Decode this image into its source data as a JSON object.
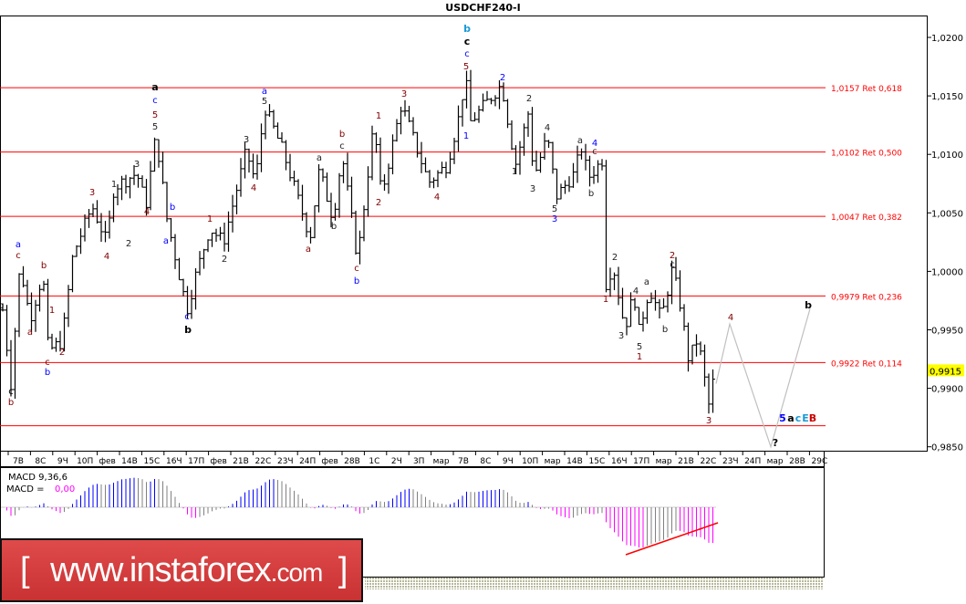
{
  "title": "USDCHF240-I",
  "chart_data": {
    "type": "ohlc",
    "symbol": "USDCHF240-I",
    "ylim": [
      0.985,
      1.022
    ],
    "y_ticks": [
      "1,0200",
      "1,0150",
      "1,0100",
      "1,0050",
      "1,0000",
      "0,9950",
      "0,9900",
      "0,9850"
    ],
    "y_tick_values": [
      1.02,
      1.015,
      1.01,
      1.005,
      1.0,
      0.995,
      0.99,
      0.985
    ],
    "x_ticks": [
      "7В",
      "8С",
      "9Ч",
      "10П",
      "фев",
      "14В",
      "15С",
      "16Ч",
      "17П",
      "фев",
      "21В",
      "22С",
      "23Ч",
      "24П",
      "фев",
      "28В",
      "1С",
      "2Ч",
      "3П",
      "мар",
      "7В",
      "8С",
      "9Ч",
      "10П",
      "мар",
      "14В",
      "15С",
      "16Ч",
      "17П",
      "мар",
      "21В",
      "22С",
      "23Ч",
      "24П",
      "мар",
      "28В",
      "29С"
    ],
    "current_price": {
      "label": "0,9915",
      "value": 0.9915,
      "color": "#ffff00"
    },
    "swing_prices": [
      0.9967,
      0.9904,
      1.0006,
      0.9959,
      0.9998,
      0.9932,
      0.994,
      1.0014,
      1.0056,
      1.0025,
      1.0072,
      1.0084,
      1.0056,
      1.0117,
      1.0045,
      0.9967,
      0.9998,
      1.0037,
      1.0025,
      1.0103,
      1.0076,
      1.0141,
      1.0103,
      1.0029,
      1.0087,
      1.0045,
      1.01,
      1.001,
      1.0127,
      1.0064,
      1.0143,
      1.0076,
      1.0091,
      1.0138,
      1.017,
      1.0127,
      1.016,
      1.0091,
      1.0138,
      1.008,
      1.0115,
      1.0064,
      1.0084,
      1.0107,
      1.008,
      1.0095,
      0.9986,
      1.0006,
      0.9951,
      0.9982,
      0.9947,
      0.9986,
      0.9959,
      1.0002,
      0.9975,
      0.9924,
      0.9943,
      0.9881,
      0.9915
    ],
    "fib_levels": [
      {
        "price": 1.0157,
        "label": "1,0157 Ret 0,618"
      },
      {
        "price": 1.0102,
        "label": "1,0102 Ret 0,500"
      },
      {
        "price": 1.0047,
        "label": "1,0047 Ret 0,382"
      },
      {
        "price": 0.9979,
        "label": "0,9979 Ret 0,236"
      },
      {
        "price": 0.9922,
        "label": "0,9922 Ret 0,114"
      },
      {
        "price": 0.9868,
        "label": ""
      }
    ],
    "fib_color": "#ff0000",
    "forecast_path_prices": [
      0.9904,
      0.9955,
      0.985,
      0.9968
    ],
    "forecast_color": "#c0c0c0",
    "wave_labels": [
      {
        "t": "b",
        "c": "#000"
      },
      {
        "t": "c",
        "c": "#000"
      },
      {
        "t": "b",
        "c": "#800000"
      },
      {
        "t": "a",
        "c": "#0000ff"
      },
      {
        "t": "c",
        "c": "#800000"
      },
      {
        "t": "a",
        "c": "#800000"
      },
      {
        "t": "b",
        "c": "#800000"
      },
      {
        "t": "1",
        "c": "#800000"
      },
      {
        "t": "c",
        "c": "#800000"
      },
      {
        "t": "b",
        "c": "#0000ff"
      },
      {
        "t": "2",
        "c": "#800000"
      },
      {
        "t": "3",
        "c": "#800000"
      },
      {
        "t": "1",
        "c": "#222"
      },
      {
        "t": "3",
        "c": "#222"
      },
      {
        "t": "4",
        "c": "#800000"
      },
      {
        "t": "2",
        "c": "#222"
      },
      {
        "t": "4",
        "c": "#800000"
      },
      {
        "t": "a",
        "c": "#000",
        "b": true
      },
      {
        "t": "c",
        "c": "#0000ff"
      },
      {
        "t": "5",
        "c": "#800000"
      },
      {
        "t": "5",
        "c": "#222"
      },
      {
        "t": "b",
        "c": "#0000ff"
      },
      {
        "t": "a",
        "c": "#0000ff"
      },
      {
        "t": "c",
        "c": "#0000ff"
      },
      {
        "t": "b",
        "c": "#000",
        "b": true
      },
      {
        "t": "1",
        "c": "#800000"
      },
      {
        "t": "2",
        "c": "#222"
      },
      {
        "t": "3",
        "c": "#222"
      },
      {
        "t": "4",
        "c": "#800000"
      },
      {
        "t": "a",
        "c": "#0000ff"
      },
      {
        "t": "5",
        "c": "#222"
      },
      {
        "t": "a",
        "c": "#222"
      },
      {
        "t": "b",
        "c": "#800000"
      },
      {
        "t": "c",
        "c": "#222"
      },
      {
        "t": "a",
        "c": "#800000"
      },
      {
        "t": "b",
        "c": "#222"
      },
      {
        "t": "c",
        "c": "#800000"
      },
      {
        "t": "b",
        "c": "#0000ff"
      },
      {
        "t": "1",
        "c": "#800000"
      },
      {
        "t": "2",
        "c": "#800000"
      },
      {
        "t": "3",
        "c": "#800000"
      },
      {
        "t": "4",
        "c": "#800000"
      },
      {
        "t": "b",
        "c": "#1a9ad6",
        "b": true
      },
      {
        "t": "c",
        "c": "#000",
        "b": true
      },
      {
        "t": "c",
        "c": "#0000ff"
      },
      {
        "t": "5",
        "c": "#800000"
      },
      {
        "t": "1",
        "c": "#0000ff"
      },
      {
        "t": "2",
        "c": "#0000ff"
      },
      {
        "t": "2",
        "c": "#222"
      },
      {
        "t": "1",
        "c": "#222"
      },
      {
        "t": "4",
        "c": "#222"
      },
      {
        "t": "3",
        "c": "#222"
      },
      {
        "t": "5",
        "c": "#222"
      },
      {
        "t": "3",
        "c": "#0000ff"
      },
      {
        "t": "a",
        "c": "#222"
      },
      {
        "t": "4",
        "c": "#0000ff"
      },
      {
        "t": "c",
        "c": "#222"
      },
      {
        "t": "b",
        "c": "#222"
      },
      {
        "t": "1",
        "c": "#800000"
      },
      {
        "t": "2",
        "c": "#222"
      },
      {
        "t": "3",
        "c": "#222"
      },
      {
        "t": "4",
        "c": "#222"
      },
      {
        "t": "5",
        "c": "#222"
      },
      {
        "t": "1",
        "c": "#800000"
      },
      {
        "t": "a",
        "c": "#222"
      },
      {
        "t": "b",
        "c": "#222"
      },
      {
        "t": "2",
        "c": "#800000"
      },
      {
        "t": "c",
        "c": "#222"
      },
      {
        "t": "3",
        "c": "#800000"
      },
      {
        "t": "4",
        "c": "#800000"
      },
      {
        "t": "b",
        "c": "#000",
        "b": true
      },
      {
        "t": "?",
        "c": "#000",
        "b": true
      },
      {
        "t": "5",
        "c": "#0000ff",
        "b": true
      },
      {
        "t": "a",
        "c": "#000",
        "b": true
      },
      {
        "t": "c",
        "c": "#1a9ad6",
        "b": true
      },
      {
        "t": "E",
        "c": "#1a9ad6",
        "b": true
      },
      {
        "t": "B",
        "c": "#cc0000",
        "b": true
      }
    ],
    "indicator": {
      "name_label": "MACD 9,36,6",
      "value_prefix": "MACD =",
      "value": "0,00",
      "value_color": "#ff00ff",
      "colors": {
        "up": "#0000ff",
        "down": "#ff00ff",
        "neutral": "#808080"
      },
      "divergence_line_color": "#ff0000"
    }
  },
  "logo": {
    "bracket_open": "[",
    "text": "www.instaforex",
    "suffix": ".com",
    "bracket_close": "]"
  }
}
